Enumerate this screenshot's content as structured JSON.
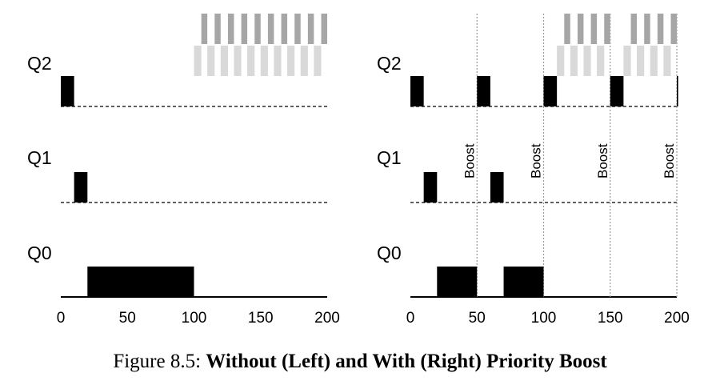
{
  "caption": {
    "prefix": "Figure 8.5: ",
    "title": "Without (Left) and With (Right) Priority Boost"
  },
  "colors": {
    "job": "#000000",
    "interactive_dark": "#a6a6a6",
    "interactive_light": "#d9d9d9",
    "boost_line": "#9a9a9a"
  },
  "chart_data": [
    {
      "type": "timeline",
      "panel": "left",
      "queues": [
        "Q2",
        "Q1",
        "Q0"
      ],
      "xlim": [
        0,
        200
      ],
      "ticks": [
        "0",
        "50",
        "100",
        "150",
        "200"
      ],
      "long_job": [
        {
          "queue": "Q2",
          "start": 0,
          "end": 10
        },
        {
          "queue": "Q1",
          "start": 10,
          "end": 20
        },
        {
          "queue": "Q0",
          "start": 20,
          "end": 100
        }
      ],
      "short_jobs": [
        {
          "start": 100,
          "end": 200
        }
      ],
      "boosts": []
    },
    {
      "type": "timeline",
      "panel": "right",
      "queues": [
        "Q2",
        "Q1",
        "Q0"
      ],
      "xlim": [
        0,
        200
      ],
      "ticks": [
        "0",
        "50",
        "100",
        "150",
        "200"
      ],
      "long_job": [
        {
          "queue": "Q2",
          "start": 0,
          "end": 10
        },
        {
          "queue": "Q1",
          "start": 10,
          "end": 20
        },
        {
          "queue": "Q0",
          "start": 20,
          "end": 50
        },
        {
          "queue": "Q2",
          "start": 50,
          "end": 60
        },
        {
          "queue": "Q1",
          "start": 60,
          "end": 70
        },
        {
          "queue": "Q0",
          "start": 70,
          "end": 100
        },
        {
          "queue": "Q2",
          "start": 100,
          "end": 110
        },
        {
          "queue": "Q2",
          "start": 150,
          "end": 160
        },
        {
          "queue": "Q2",
          "start": 200,
          "end": 201
        }
      ],
      "short_jobs": [
        {
          "start": 110,
          "end": 150
        },
        {
          "start": 160,
          "end": 200
        }
      ],
      "boosts": [
        {
          "at": 50,
          "label": "Boost"
        },
        {
          "at": 100,
          "label": "Boost"
        },
        {
          "at": 150,
          "label": "Boost"
        },
        {
          "at": 200,
          "label": "Boost"
        }
      ]
    }
  ]
}
